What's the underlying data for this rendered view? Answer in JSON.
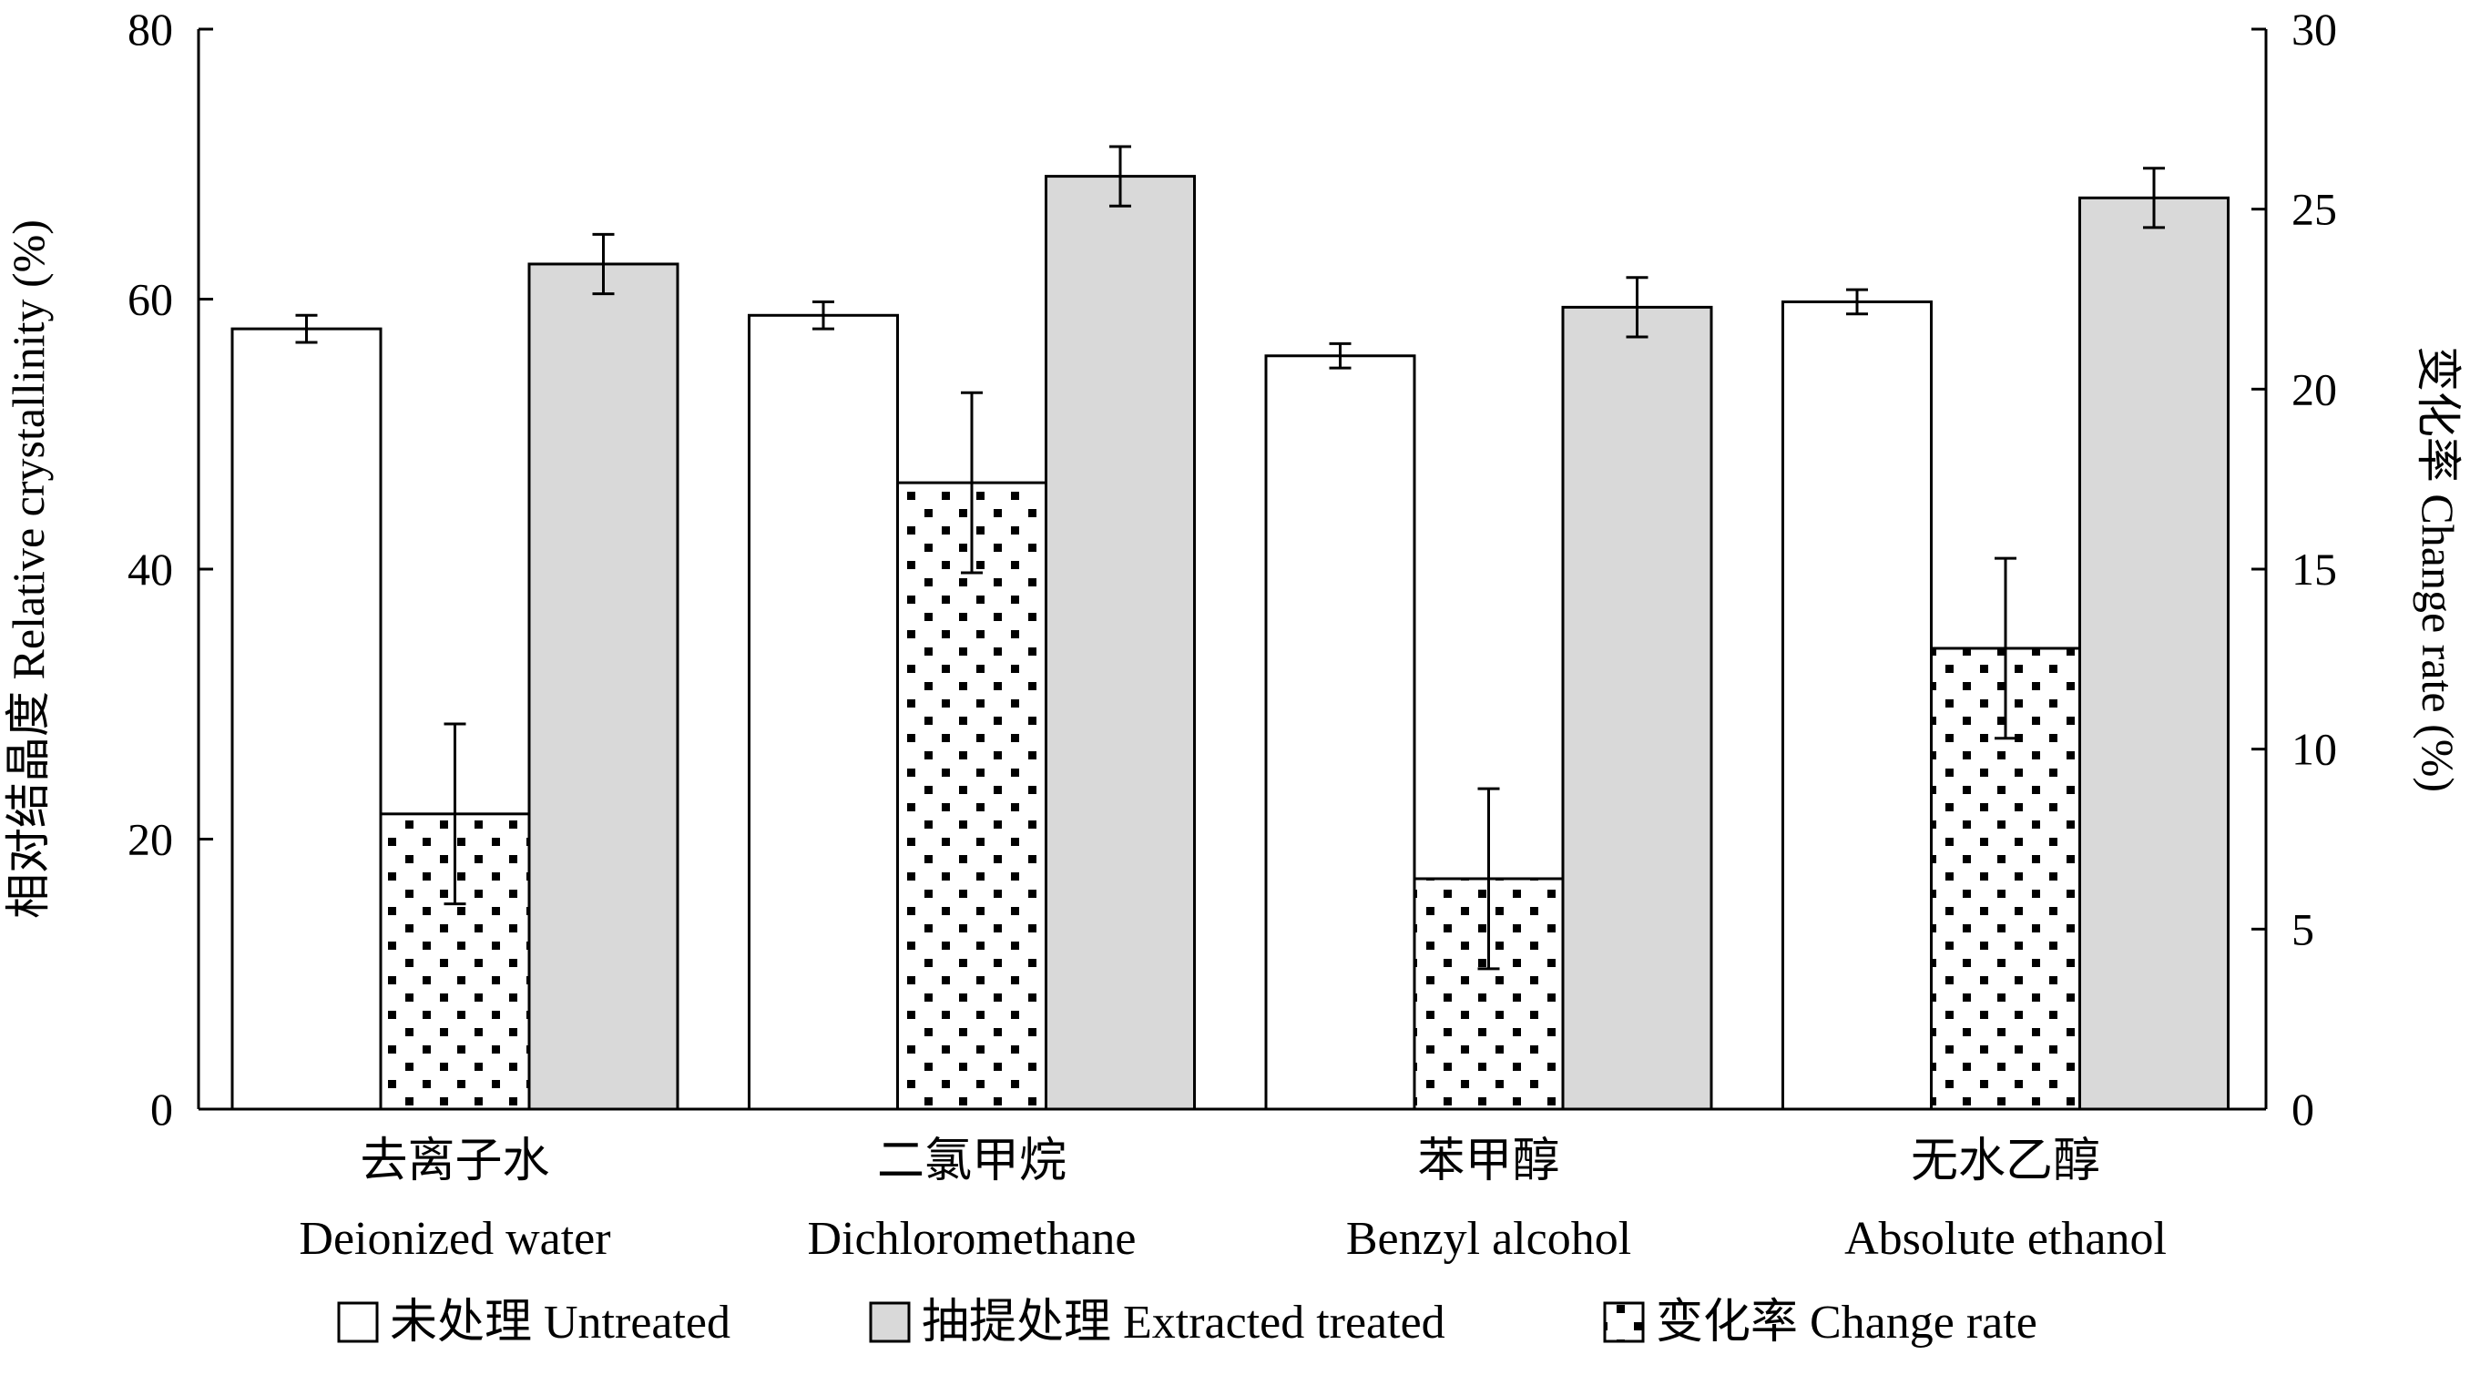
{
  "chart_data": {
    "type": "bar",
    "categories": [
      {
        "zh": "去离子水",
        "en": "Deionized water"
      },
      {
        "zh": "二氯甲烷",
        "en": "Dichloromethane"
      },
      {
        "zh": "苯甲醇",
        "en": "Benzyl alcohol"
      },
      {
        "zh": "无水乙醇",
        "en": "Absolute ethanol"
      }
    ],
    "series": [
      {
        "name": "未处理  Untreated",
        "axis": "left",
        "fill": "#ffffff",
        "values": [
          57.8,
          58.8,
          55.8,
          59.8
        ],
        "errors": [
          1.0,
          1.0,
          0.9,
          0.9
        ]
      },
      {
        "name": "变化率  Change rate",
        "axis": "right",
        "fill": "pattern-dots",
        "values": [
          8.2,
          17.4,
          6.4,
          12.8
        ],
        "errors": [
          2.5,
          2.5,
          2.5,
          2.5
        ]
      },
      {
        "name": "抽提处理  Extracted treated",
        "axis": "left",
        "fill": "#d9d9d9",
        "values": [
          62.6,
          69.1,
          59.4,
          67.5
        ],
        "errors": [
          2.2,
          2.2,
          2.2,
          2.2
        ]
      }
    ],
    "legend_order": [
      0,
      2,
      1
    ],
    "y_left": {
      "label": "相对结晶度  Relative crystallinity (%)",
      "range": [
        0,
        80
      ],
      "ticks": [
        0,
        20,
        40,
        60,
        80
      ]
    },
    "y_right": {
      "label": "变化率  Change rate (%)",
      "range": [
        0,
        30
      ],
      "ticks": [
        0,
        5,
        10,
        15,
        20,
        25,
        30
      ]
    },
    "grid": false,
    "legend_position": "bottom"
  }
}
